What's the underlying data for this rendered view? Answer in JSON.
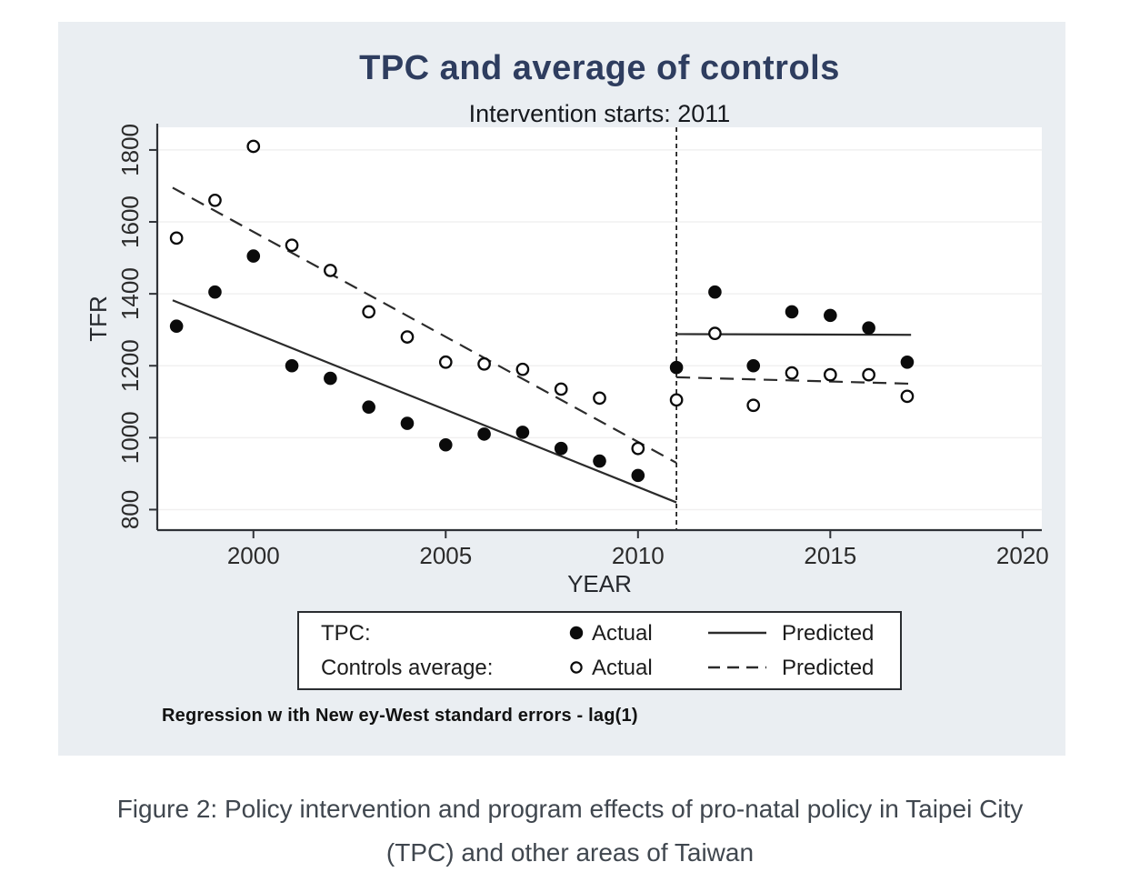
{
  "figure": {
    "note": "Regression w ith New ey-West standard errors - lag(1)"
  },
  "caption": {
    "line1": "Figure 2: Policy intervention and program effects of pro-natal policy in Taipei City",
    "line2": "(TPC) and other areas of Taiwan"
  },
  "legend": {
    "rows": [
      {
        "group": "TPC:",
        "marker": "filled-circle",
        "actual_label": "Actual",
        "line_style": "solid",
        "predicted_label": "Predicted"
      },
      {
        "group": "Controls average:",
        "marker": "open-circle",
        "actual_label": "Actual",
        "line_style": "dashed",
        "predicted_label": "Predicted"
      }
    ]
  },
  "colors": {
    "title": "#2e3d5f",
    "figure_background": "#eaeef2",
    "plot_background": "#ffffff",
    "gridline": "#f1f0f0",
    "ink": "#1a1a1a"
  },
  "chart_data": {
    "type": "scatter",
    "title": "TPC and average of controls",
    "subtitle": "Intervention starts: 2011",
    "xlabel": "YEAR",
    "ylabel": "TFR",
    "xlim": [
      1997.5,
      2020.5
    ],
    "ylim": [
      743,
      1863
    ],
    "xticks": [
      2000,
      2005,
      2010,
      2015,
      2020
    ],
    "yticks": [
      800,
      1000,
      1200,
      1400,
      1600,
      1800
    ],
    "grid": "horizontal",
    "legend_position": "bottom",
    "intervention_year": 2011,
    "years": [
      1998,
      1999,
      2000,
      2001,
      2002,
      2003,
      2004,
      2005,
      2006,
      2007,
      2008,
      2009,
      2010,
      2011,
      2012,
      2013,
      2014,
      2015,
      2016,
      2017
    ],
    "series": [
      {
        "name": "TPC Actual",
        "kind": "points",
        "marker": "filled",
        "values": [
          1310,
          1405,
          1505,
          1200,
          1165,
          1085,
          1040,
          980,
          1010,
          1015,
          970,
          935,
          895,
          1195,
          1405,
          1200,
          1350,
          1340,
          1305,
          1210
        ]
      },
      {
        "name": "Controls average Actual",
        "kind": "points",
        "marker": "open",
        "values": [
          1555,
          1660,
          1810,
          1535,
          1465,
          1350,
          1280,
          1210,
          1205,
          1190,
          1135,
          1110,
          970,
          1105,
          1290,
          1090,
          1180,
          1175,
          1175,
          1115
        ]
      },
      {
        "name": "TPC Predicted",
        "kind": "line",
        "style": "solid",
        "segments": [
          [
            [
              1997.9,
              1382
            ],
            [
              2011,
              820
            ]
          ],
          [
            [
              2011,
              1288
            ],
            [
              2017.1,
              1286
            ]
          ]
        ]
      },
      {
        "name": "Controls average Predicted",
        "kind": "line",
        "style": "dashed",
        "segments": [
          [
            [
              1997.9,
              1695
            ],
            [
              2011,
              930
            ]
          ],
          [
            [
              2011,
              1168
            ],
            [
              2017.1,
              1150
            ]
          ]
        ]
      }
    ]
  }
}
